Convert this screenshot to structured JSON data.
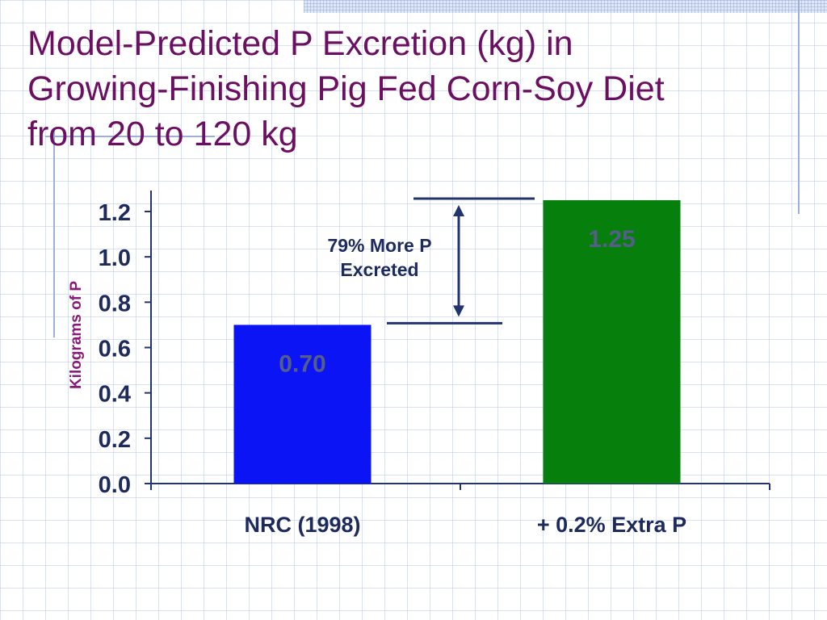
{
  "slide": {
    "title_lines": [
      "Model-Predicted P Excretion (kg) in",
      "Growing-Finishing Pig Fed Corn-Soy Diet",
      "from 20 to 120 kg"
    ]
  },
  "chart_data": {
    "type": "bar",
    "categories": [
      "NRC (1998)",
      "+ 0.2% Extra P"
    ],
    "values": [
      0.7,
      1.25
    ],
    "data_labels": [
      "0.70",
      "1.25"
    ],
    "bar_colors": [
      "#0a14f5",
      "#067f0c"
    ],
    "ylabel": "Kilograms of P",
    "ylim": [
      0,
      1.2
    ],
    "yticks": [
      "0.0",
      "0.2",
      "0.4",
      "0.6",
      "0.8",
      "1.0",
      "1.2"
    ],
    "grid": false,
    "annotation": {
      "lines": [
        "79% More P",
        "Excreted"
      ],
      "from_value": 0.7,
      "to_value": 1.25
    }
  },
  "colors": {
    "title": "#6b0f62",
    "axis": "#22336e",
    "data_label": "#555d8a"
  }
}
